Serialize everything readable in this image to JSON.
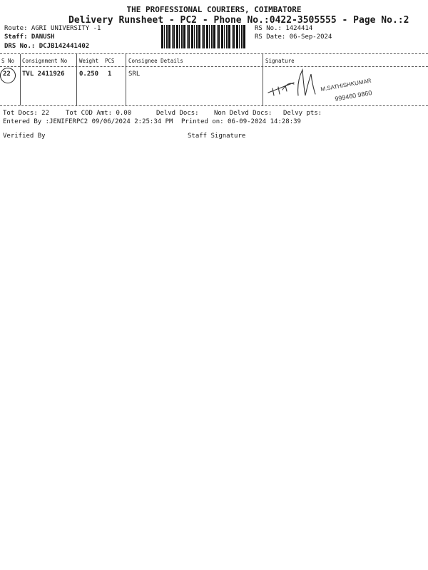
{
  "header": {
    "company": "THE PROFESSIONAL COURIERS, COIMBATORE",
    "title": "Delivery Runsheet - PC2 - Phone No.:0422-3505555 - Page No.:2",
    "route": "Route: AGRI UNIVERSITY -1",
    "staff": "Staff: DANUSH",
    "drs_no": "DRS No.: DCJB142441402",
    "rs_no": "RS No.: 1424414",
    "rs_date": "RS Date: 06-Sep-2024"
  },
  "table": {
    "columns": [
      "S No",
      "Consignment No",
      "Weight",
      "PCS",
      "Consignee Details",
      "Signature"
    ],
    "rows": [
      {
        "s_no": "22",
        "consignment_no": "TVL 2411926",
        "weight": "0.250",
        "pcs": "1",
        "consignee": "SRL",
        "signature_text": "M.SATHISHKUMAR 9994609860"
      }
    ]
  },
  "footer": {
    "tot_docs": "Tot Docs:  22",
    "tot_cod": "Tot COD Amt:    0.00",
    "delvd_docs": "Delvd Docs:",
    "non_delvd_docs": "Non Delvd Docs:",
    "delvy_pts": "Delvy pts:",
    "entered_by": "Entered By :JENIFERPC2 09/06/2024 2:25:34 PM",
    "printed_on": "Printed on: 06-09-2024 14:28:39",
    "verified_by": "Verified By",
    "staff_signature": "Staff Signature"
  }
}
